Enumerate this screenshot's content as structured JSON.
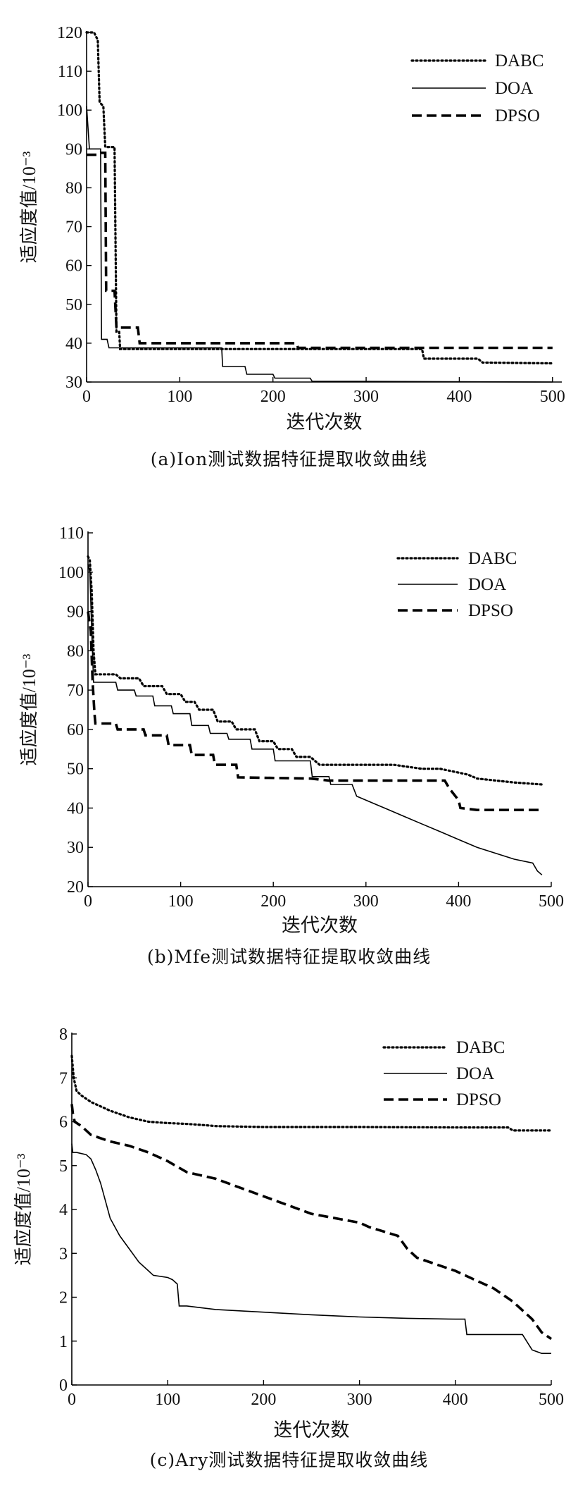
{
  "chart_data": [
    {
      "type": "line",
      "caption": "(a)Ion测试数据特征提取收敛曲线",
      "xlabel": "迭代次数",
      "ylabel": "适应度值/10⁻³",
      "xlim": [
        0,
        510
      ],
      "ylim": [
        30,
        120
      ],
      "xticks": [
        0,
        100,
        200,
        300,
        400,
        500
      ],
      "yticks": [
        30,
        40,
        50,
        60,
        70,
        80,
        90,
        100,
        110,
        120
      ],
      "legend_position": "top-right",
      "series": [
        {
          "name": "DABC",
          "style": "dotted",
          "x": [
            0,
            8,
            12,
            14,
            18,
            20,
            24,
            30,
            32,
            35,
            36,
            40,
            200,
            360,
            362,
            420,
            425,
            500
          ],
          "y": [
            120,
            120,
            118,
            102,
            101,
            90.5,
            90.5,
            90.5,
            43,
            43,
            38.5,
            38.5,
            38.5,
            38.5,
            36,
            36,
            35,
            34.8
          ]
        },
        {
          "name": "DOA",
          "style": "solid",
          "x": [
            0,
            3,
            5,
            15,
            16,
            22,
            24,
            145,
            146,
            170,
            172,
            200,
            202,
            240,
            242,
            500
          ],
          "y": [
            101,
            90,
            90,
            90,
            41,
            41,
            38.8,
            38.8,
            34,
            34,
            32,
            32,
            31,
            31,
            30.2,
            30
          ]
        },
        {
          "name": "DPSO",
          "style": "dashed",
          "x": [
            0,
            13,
            15,
            20,
            21,
            30,
            32,
            40,
            42,
            55,
            57,
            225,
            227,
            500
          ],
          "y": [
            88.5,
            88.5,
            89,
            89,
            53.5,
            53.5,
            44,
            44,
            44,
            44,
            40,
            40,
            38.8,
            38.8
          ]
        }
      ]
    },
    {
      "type": "line",
      "caption": "(b)Mfe测试数据特征提取收敛曲线",
      "xlabel": "迭代次数",
      "ylabel": "适应度值/10⁻³",
      "xlim": [
        0,
        500
      ],
      "ylim": [
        20,
        110
      ],
      "xticks": [
        0,
        100,
        200,
        300,
        400,
        500
      ],
      "yticks": [
        20,
        30,
        40,
        50,
        60,
        70,
        80,
        90,
        100,
        110
      ],
      "legend_position": "top-right",
      "series": [
        {
          "name": "DABC",
          "style": "dotted",
          "x": [
            0,
            2,
            4,
            6,
            8,
            30,
            35,
            55,
            60,
            80,
            85,
            100,
            105,
            115,
            120,
            135,
            140,
            155,
            160,
            180,
            185,
            200,
            205,
            220,
            225,
            240,
            250,
            280,
            300,
            330,
            360,
            380,
            400,
            410,
            420,
            440,
            460,
            490
          ],
          "y": [
            104,
            103,
            95,
            80,
            74,
            74,
            73,
            73,
            71,
            71,
            69,
            69,
            67,
            67,
            65,
            65,
            62,
            62,
            60,
            60,
            57,
            57,
            55,
            55,
            53,
            53,
            51,
            51,
            51,
            51,
            50,
            50,
            49,
            48.5,
            47.5,
            47,
            46.5,
            46
          ]
        },
        {
          "name": "DOA",
          "style": "solid",
          "x": [
            0,
            2,
            4,
            6,
            30,
            32,
            50,
            52,
            70,
            72,
            90,
            92,
            110,
            112,
            130,
            132,
            150,
            152,
            175,
            177,
            200,
            202,
            240,
            242,
            260,
            262,
            285,
            290,
            310,
            320,
            340,
            360,
            380,
            400,
            420,
            440,
            460,
            480,
            485,
            490
          ],
          "y": [
            102,
            100,
            85,
            72,
            72,
            70,
            70,
            68.5,
            68.5,
            66,
            66,
            64,
            64,
            61,
            61,
            59,
            59,
            57.5,
            57.5,
            55,
            55,
            52,
            52,
            48,
            48,
            46,
            46,
            43,
            41,
            40,
            38,
            36,
            34,
            32,
            30,
            28.5,
            27,
            26,
            24,
            23
          ]
        },
        {
          "name": "DPSO",
          "style": "dashed",
          "x": [
            0,
            3,
            5,
            7,
            8,
            30,
            32,
            60,
            62,
            85,
            87,
            110,
            112,
            135,
            137,
            160,
            162,
            240,
            260,
            385,
            390,
            400,
            402,
            420,
            490
          ],
          "y": [
            90,
            85,
            72,
            64,
            61.5,
            61.5,
            60,
            60,
            58.5,
            58.5,
            56,
            56,
            53.5,
            53.5,
            51,
            51,
            47.8,
            47.5,
            47,
            47,
            45,
            42,
            40,
            39.5,
            39.5
          ]
        }
      ]
    },
    {
      "type": "line",
      "caption": "(c)Ary测试数据特征提取收敛曲线",
      "xlabel": "迭代次数",
      "ylabel": "适应度值/10⁻³",
      "xlim": [
        0,
        500
      ],
      "ylim": [
        0,
        8
      ],
      "xticks": [
        0,
        100,
        200,
        300,
        400,
        500
      ],
      "yticks": [
        0,
        1,
        2,
        3,
        4,
        5,
        6,
        7,
        8
      ],
      "legend_position": "top-right",
      "series": [
        {
          "name": "DABC",
          "style": "dotted",
          "x": [
            0,
            2,
            5,
            10,
            20,
            40,
            60,
            80,
            100,
            120,
            140,
            150,
            200,
            300,
            400,
            455,
            460,
            500
          ],
          "y": [
            7.5,
            7.0,
            6.7,
            6.6,
            6.45,
            6.25,
            6.1,
            6.0,
            5.97,
            5.95,
            5.92,
            5.9,
            5.88,
            5.88,
            5.87,
            5.87,
            5.8,
            5.8
          ]
        },
        {
          "name": "DOA",
          "style": "solid",
          "x": [
            0,
            1,
            3,
            5,
            15,
            20,
            25,
            30,
            35,
            40,
            50,
            60,
            70,
            80,
            85,
            100,
            105,
            110,
            112,
            120,
            150,
            200,
            250,
            300,
            350,
            400,
            410,
            412,
            460,
            470,
            480,
            490,
            500
          ],
          "y": [
            5.5,
            5.3,
            5.3,
            5.3,
            5.25,
            5.15,
            4.9,
            4.6,
            4.2,
            3.8,
            3.4,
            3.1,
            2.8,
            2.6,
            2.5,
            2.45,
            2.4,
            2.3,
            1.8,
            1.8,
            1.72,
            1.66,
            1.6,
            1.55,
            1.52,
            1.5,
            1.5,
            1.15,
            1.15,
            1.15,
            0.8,
            0.72,
            0.72
          ]
        },
        {
          "name": "DPSO",
          "style": "dashed",
          "x": [
            0,
            1,
            3,
            10,
            20,
            40,
            60,
            80,
            100,
            120,
            140,
            150,
            200,
            250,
            300,
            310,
            340,
            350,
            360,
            400,
            410,
            440,
            460,
            480,
            490,
            500
          ],
          "y": [
            6.4,
            6.2,
            6.0,
            5.9,
            5.7,
            5.55,
            5.45,
            5.3,
            5.1,
            4.85,
            4.75,
            4.7,
            4.3,
            3.9,
            3.7,
            3.6,
            3.4,
            3.1,
            2.9,
            2.6,
            2.5,
            2.2,
            1.9,
            1.5,
            1.2,
            1.05
          ]
        }
      ]
    }
  ]
}
